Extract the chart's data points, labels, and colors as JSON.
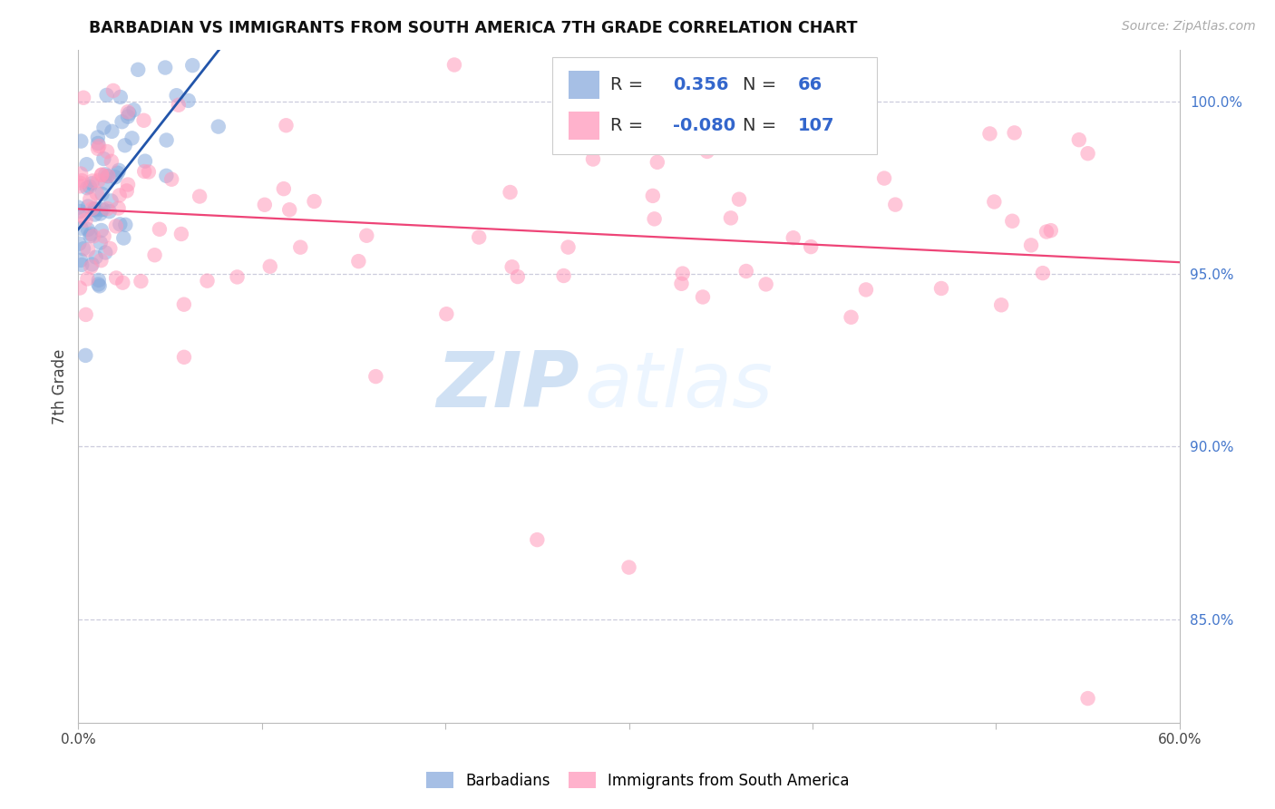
{
  "title": "BARBADIAN VS IMMIGRANTS FROM SOUTH AMERICA 7TH GRADE CORRELATION CHART",
  "source": "Source: ZipAtlas.com",
  "ylabel": "7th Grade",
  "watermark_zip": "ZIP",
  "watermark_atlas": "atlas",
  "blue_label": "Barbadians",
  "pink_label": "Immigrants from South America",
  "blue_R": 0.356,
  "blue_N": 66,
  "pink_R": -0.08,
  "pink_N": 107,
  "blue_color": "#88AADD",
  "pink_color": "#FF99BB",
  "blue_line_color": "#2255AA",
  "pink_line_color": "#EE4477",
  "legend_num_color": "#3366CC",
  "right_ytick_values": [
    85.0,
    90.0,
    95.0,
    100.0
  ],
  "right_ytick_labels": [
    "85.0%",
    "90.0%",
    "95.0%",
    "100.0%"
  ],
  "xlim": [
    0.0,
    60.0
  ],
  "ylim": [
    82.0,
    101.5
  ],
  "xtick_values": [
    0,
    10,
    20,
    30,
    40,
    50,
    60
  ],
  "grid_color": "#CCCCDD",
  "title_fontsize": 12.5,
  "source_fontsize": 10,
  "legend_fontsize": 14,
  "tick_fontsize": 11,
  "blue_trend_xend": 22.0,
  "pink_trend_xstart": 0.0,
  "pink_trend_xend": 60.0,
  "pink_trend_ystart": 96.5,
  "pink_trend_yend": 95.0
}
